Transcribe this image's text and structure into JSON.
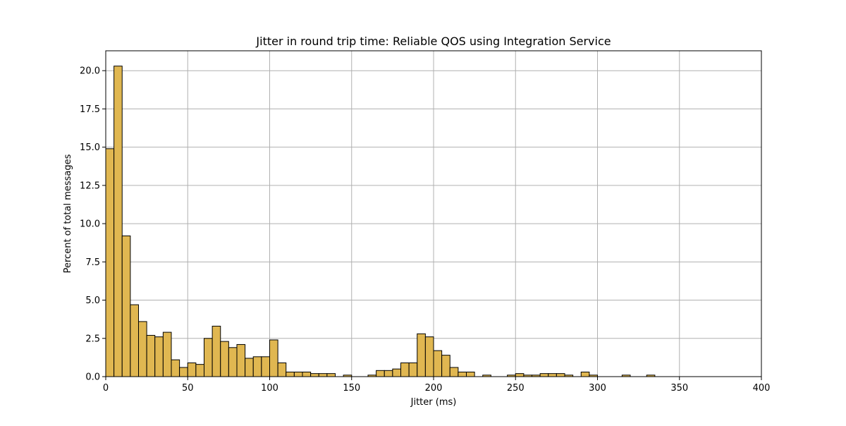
{
  "chart_data": {
    "type": "bar",
    "title": "Jitter in round trip time: Reliable QOS using Integration Service",
    "xlabel": "Jitter (ms)",
    "ylabel": "Percent of total messages",
    "xlim": [
      0,
      400
    ],
    "ylim": [
      0,
      21.3
    ],
    "xticks": [
      0,
      50,
      100,
      150,
      200,
      250,
      300,
      350,
      400
    ],
    "xtick_labels": [
      "0",
      "50",
      "100",
      "150",
      "200",
      "250",
      "300",
      "350",
      "400"
    ],
    "yticks": [
      0,
      2.5,
      5,
      7.5,
      10,
      12.5,
      15,
      17.5,
      20
    ],
    "ytick_labels": [
      "0.0",
      "2.5",
      "5.0",
      "7.5",
      "10.0",
      "12.5",
      "15.0",
      "17.5",
      "20.0"
    ],
    "grid": true,
    "bar_color": "#e0b751",
    "edge_color": "#000000",
    "bin_width": 5,
    "bin_starts": [
      0,
      5,
      10,
      15,
      20,
      25,
      30,
      35,
      40,
      45,
      50,
      55,
      60,
      65,
      70,
      75,
      80,
      85,
      90,
      95,
      100,
      105,
      110,
      115,
      120,
      125,
      130,
      135,
      140,
      145,
      150,
      155,
      160,
      165,
      170,
      175,
      180,
      185,
      190,
      195,
      200,
      205,
      210,
      215,
      220,
      225,
      230,
      235,
      240,
      245,
      250,
      255,
      260,
      265,
      270,
      275,
      280,
      285,
      290,
      295,
      300,
      305,
      310,
      315,
      320,
      325,
      330
    ],
    "values": [
      14.9,
      20.3,
      9.2,
      4.7,
      3.6,
      2.7,
      2.6,
      2.9,
      1.1,
      0.6,
      0.9,
      0.8,
      2.5,
      3.3,
      2.3,
      1.9,
      2.1,
      1.2,
      1.3,
      1.3,
      2.4,
      0.9,
      0.3,
      0.3,
      0.3,
      0.2,
      0.2,
      0.2,
      0.0,
      0.1,
      0.0,
      0.0,
      0.1,
      0.4,
      0.4,
      0.5,
      0.9,
      0.9,
      2.8,
      2.6,
      1.7,
      1.4,
      0.6,
      0.3,
      0.3,
      0.0,
      0.1,
      0.0,
      0.0,
      0.1,
      0.2,
      0.1,
      0.1,
      0.2,
      0.2,
      0.2,
      0.1,
      0.0,
      0.3,
      0.1,
      0.0,
      0.0,
      0.0,
      0.1,
      0.0,
      0.0,
      0.1
    ]
  }
}
